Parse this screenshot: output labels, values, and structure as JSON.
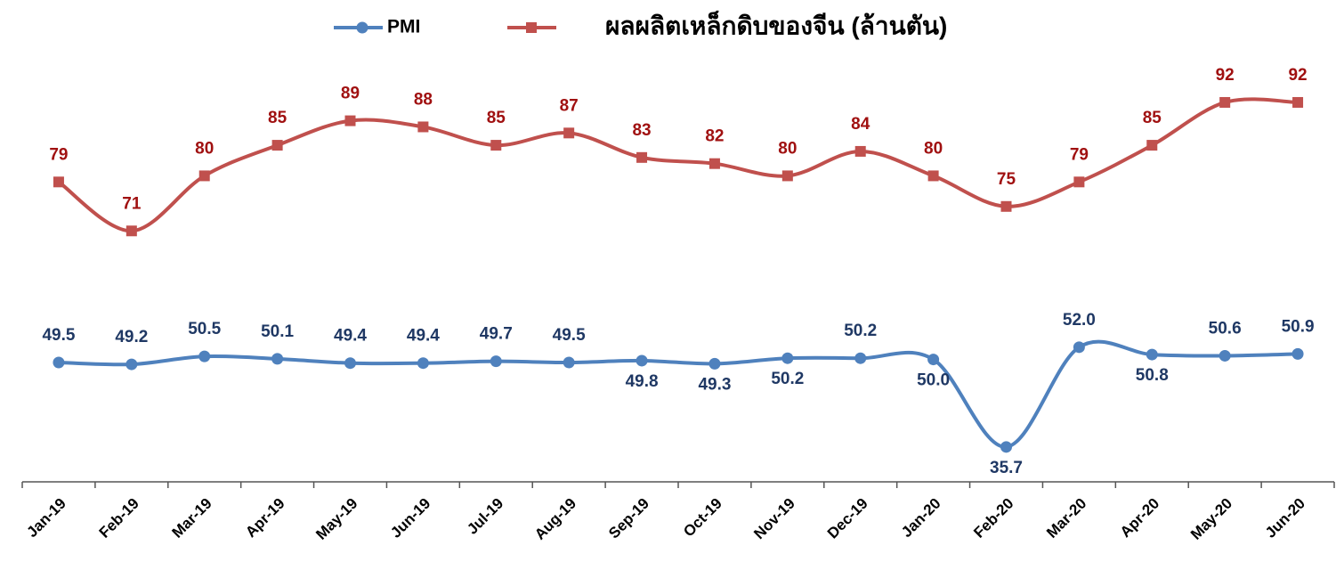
{
  "chart_data": {
    "type": "line",
    "categories": [
      "Jan-19",
      "Feb-19",
      "Mar-19",
      "Apr-19",
      "May-19",
      "Jun-19",
      "Jul-19",
      "Aug-19",
      "Sep-19",
      "Oct-19",
      "Nov-19",
      "Dec-19",
      "Jan-20",
      "Feb-20",
      "Mar-20",
      "Apr-20",
      "May-20",
      "Jun-20"
    ],
    "series": [
      {
        "name": "PMI",
        "color": "#4f81bd",
        "marker": "circle",
        "values": [
          49.5,
          49.2,
          50.5,
          50.1,
          49.4,
          49.4,
          49.7,
          49.5,
          49.8,
          49.3,
          50.2,
          50.2,
          50.0,
          35.7,
          52.0,
          50.8,
          50.6,
          50.9
        ],
        "value_labels": [
          "49.5",
          "49.2",
          "50.5",
          "50.1",
          "49.4",
          "49.4",
          "49.7",
          "49.5",
          "49.8",
          "49.3",
          "50.2",
          "50.2",
          "50.0",
          "35.7",
          "52.0",
          "50.8",
          "50.6",
          "50.9"
        ]
      },
      {
        "name": "ผลผลิตเหล็กดิบของจีน (ล้านตัน)",
        "color": "#c0504d",
        "marker": "square",
        "axis": "y2",
        "values": [
          79,
          71,
          80,
          85,
          89,
          88,
          85,
          87,
          83,
          82,
          80,
          84,
          80,
          75,
          79,
          85,
          92,
          92
        ]
      }
    ],
    "ylim": [
      30,
      100
    ],
    "y2lim": [
      30,
      100
    ],
    "legend": "top"
  }
}
